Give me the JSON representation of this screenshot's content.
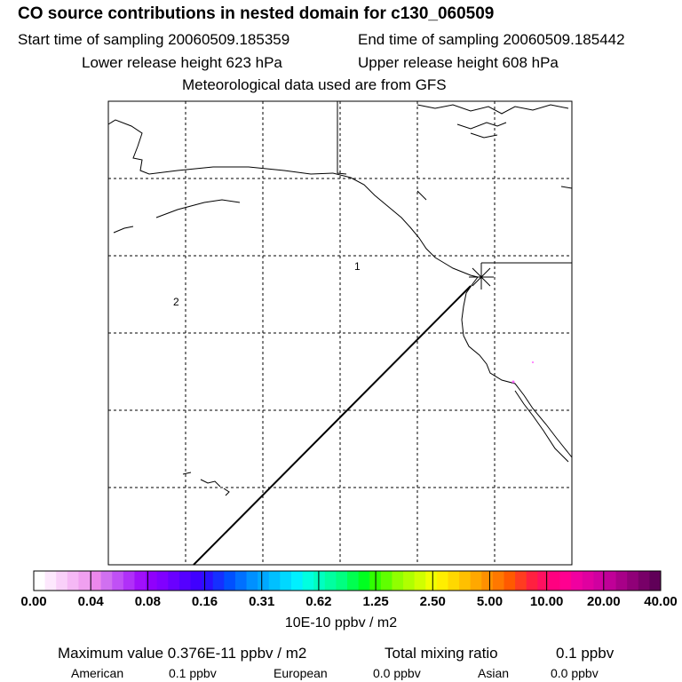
{
  "header": {
    "title": "CO  source contributions in nested domain for c130_060509",
    "start_time": "Start time of sampling 20060509.185359",
    "end_time": "End time of sampling 20060509.185442",
    "lower_release": "Lower release height  623 hPa",
    "upper_release": "Upper release height  608 hPa",
    "met_data": "Meteorological data used are from GFS"
  },
  "map": {
    "region_labels": [
      "1",
      "2"
    ],
    "colors": {
      "coast": "#000000",
      "grid": "#000000",
      "plume": "#ff66ff"
    }
  },
  "colorbar": {
    "tick_labels": [
      "0.00",
      "0.04",
      "0.08",
      "0.16",
      "0.31",
      "0.62",
      "1.25",
      "2.50",
      "5.00",
      "10.00",
      "20.00",
      "40.00"
    ],
    "units": "10E-10 ppbv / m2",
    "colors": [
      "#ffffff",
      "#fde8fd",
      "#f9d0f9",
      "#f5b8f5",
      "#f0a0f0",
      "#ec88ec",
      "#d070f0",
      "#c050f5",
      "#b030f8",
      "#a010fa",
      "#9000fc",
      "#8000ff",
      "#6a00ff",
      "#5500ff",
      "#4000ff",
      "#2a10ff",
      "#1530ff",
      "#0050ff",
      "#0070ff",
      "#0090ff",
      "#00a8ff",
      "#00c0ff",
      "#00d8ff",
      "#00f0ff",
      "#00ffe0",
      "#00ffc0",
      "#00ffa0",
      "#00ff80",
      "#00ff50",
      "#00ff20",
      "#30ff00",
      "#60ff00",
      "#90ff00",
      "#b0ff00",
      "#d0ff00",
      "#f0ff00",
      "#ffee00",
      "#ffd800",
      "#ffc000",
      "#ffa800",
      "#ff9000",
      "#ff7800",
      "#ff5a00",
      "#ff3c20",
      "#ff2040",
      "#ff1060",
      "#ff0080",
      "#ff0090",
      "#f000a0",
      "#e000a0",
      "#d000a0",
      "#c00098",
      "#a80088",
      "#900078",
      "#780068",
      "#600058"
    ]
  },
  "stats": {
    "max_value": "Maximum value  0.376E-11 ppbv / m2",
    "total_mixing": "Total mixing ratio",
    "total_value": "0.1 ppbv",
    "american_label": "American",
    "american_value": "0.1 ppbv",
    "european_label": "European",
    "european_value": "0.0 ppbv",
    "asian_label": "Asian",
    "asian_value": "0.0 ppbv"
  }
}
